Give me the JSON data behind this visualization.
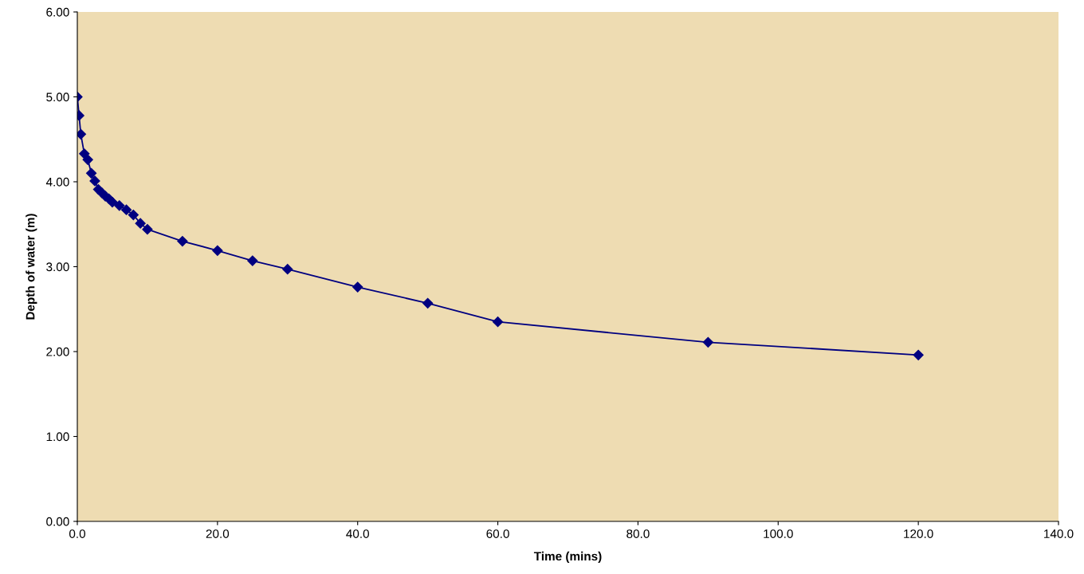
{
  "chart_data": {
    "type": "line",
    "xlabel": "Time (mins)",
    "ylabel": "Depth of water (m)",
    "x": [
      0,
      0.25,
      0.5,
      1,
      1.5,
      2,
      2.5,
      3,
      3.5,
      4,
      4.5,
      5,
      6,
      7,
      8,
      9,
      10,
      15,
      20,
      25,
      30,
      40,
      50,
      60,
      90,
      120
    ],
    "series": [
      {
        "color": "#000080",
        "values": [
          5.0,
          4.78,
          4.56,
          4.33,
          4.26,
          4.1,
          4.01,
          3.91,
          3.87,
          3.83,
          3.8,
          3.76,
          3.72,
          3.67,
          3.61,
          3.51,
          3.44,
          3.3,
          3.19,
          3.07,
          2.97,
          2.76,
          2.57,
          2.35,
          2.11,
          1.96
        ]
      }
    ],
    "xlim": [
      0,
      140
    ],
    "xticks": [
      {
        "value": 0,
        "label": "0.0"
      },
      {
        "value": 20,
        "label": "20.0"
      },
      {
        "value": 40,
        "label": "40.0"
      },
      {
        "value": 60,
        "label": "60.0"
      },
      {
        "value": 80,
        "label": "80.0"
      },
      {
        "value": 100,
        "label": "100.0"
      },
      {
        "value": 120,
        "label": "120.0"
      },
      {
        "value": 140,
        "label": "140.0"
      }
    ],
    "ylim": [
      0,
      6
    ],
    "yticks": [
      {
        "value": 0,
        "label": "0.00"
      },
      {
        "value": 1,
        "label": "1.00"
      },
      {
        "value": 2,
        "label": "2.00"
      },
      {
        "value": 3,
        "label": "3.00"
      },
      {
        "value": 4,
        "label": "4.00"
      },
      {
        "value": 5,
        "label": "5.00"
      },
      {
        "value": 6,
        "label": "6.00"
      }
    ],
    "grid": false,
    "legend": false,
    "marker": "diamond",
    "line_style": "solid"
  }
}
